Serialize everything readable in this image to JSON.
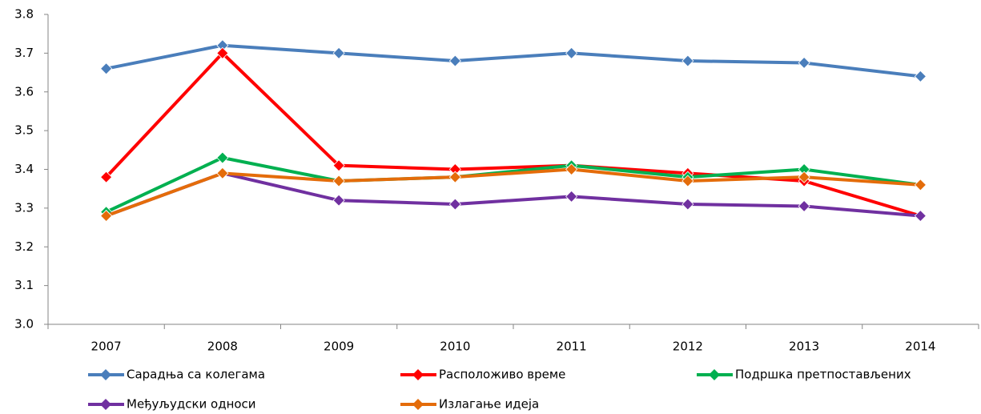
{
  "chart_data": {
    "type": "line",
    "categories": [
      "2007",
      "2008",
      "2009",
      "2010",
      "2011",
      "2012",
      "2013",
      "2014"
    ],
    "series": [
      {
        "name": "Сарадња са колегама",
        "color": "#4a7ebb",
        "values": [
          3.66,
          3.72,
          3.7,
          3.68,
          3.7,
          3.68,
          3.675,
          3.64
        ]
      },
      {
        "name": "Расположиво време",
        "color": "#ff0000",
        "values": [
          3.38,
          3.7,
          3.41,
          3.4,
          3.41,
          3.39,
          3.37,
          3.28
        ]
      },
      {
        "name": "Подршка претпостављених",
        "color": "#00b050",
        "values": [
          3.29,
          3.43,
          3.37,
          3.38,
          3.41,
          3.38,
          3.4,
          3.36
        ]
      },
      {
        "name": "Међуљудски односи",
        "color": "#7030a0",
        "values": [
          3.28,
          3.39,
          3.32,
          3.31,
          3.33,
          3.31,
          3.305,
          3.28
        ]
      },
      {
        "name": "Излагање идеја",
        "color": "#e46c0a",
        "values": [
          3.28,
          3.39,
          3.37,
          3.38,
          3.4,
          3.37,
          3.38,
          3.36
        ]
      }
    ],
    "ylim": [
      3.0,
      3.8
    ],
    "yticks": [
      {
        "value": 3.0,
        "label": "3.0"
      },
      3.1,
      3.2,
      3.3,
      3.4,
      3.5,
      3.6,
      3.7,
      3.8
    ],
    "grid": false,
    "legend": "bottom"
  }
}
